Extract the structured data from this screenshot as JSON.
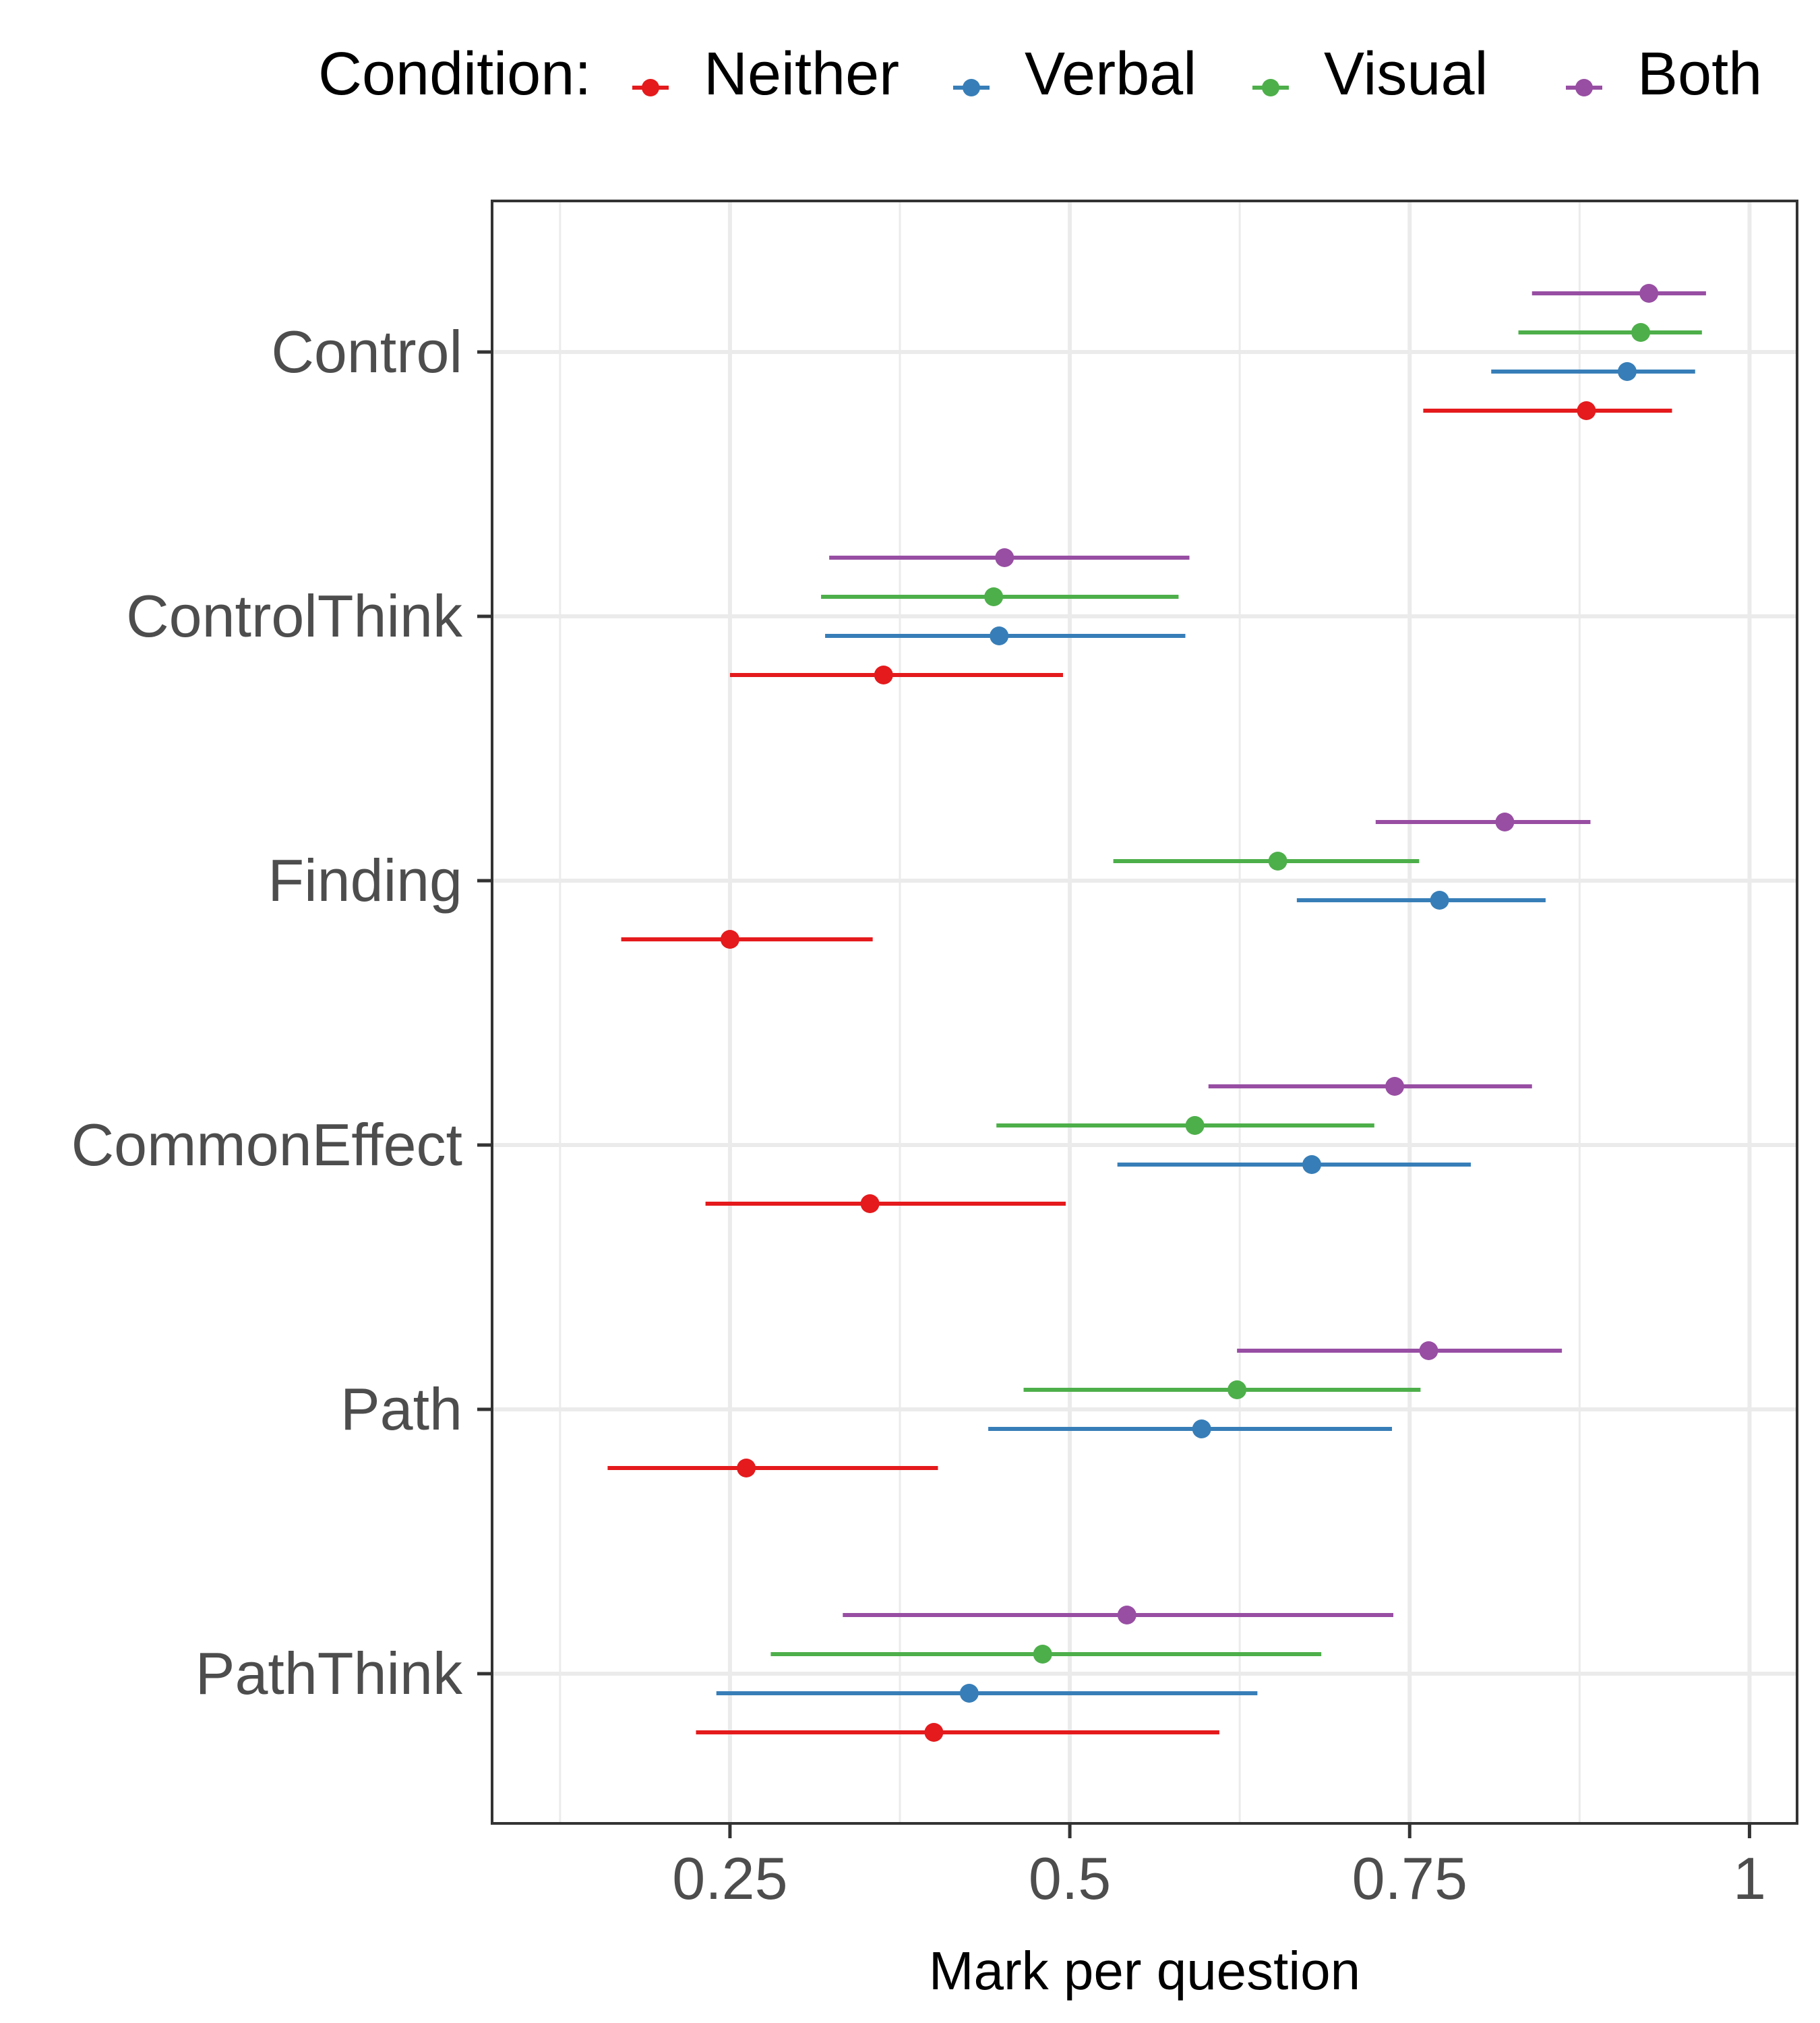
{
  "chart_data": {
    "type": "dot-errorbar",
    "title": "",
    "xlabel": "Mark per question",
    "ylabel": "",
    "xlim": [
      0.075,
      1.035
    ],
    "x_ticks": [
      0.25,
      0.5,
      0.75,
      1.0
    ],
    "x_tick_labels": [
      "0.25",
      "0.5",
      "0.75",
      "1"
    ],
    "minor_gridlines": [
      0.125,
      0.375,
      0.625,
      0.875
    ],
    "grid": true,
    "legend": {
      "position": "top",
      "title": "Condition:",
      "entries": [
        "Neither",
        "Verbal",
        "Visual",
        "Both"
      ]
    },
    "categories": [
      "Control",
      "ControlThink",
      "Finding",
      "CommonEffect",
      "Path",
      "PathThink"
    ],
    "series": [
      {
        "name": "Neither",
        "color": "#E41A1C",
        "points": [
          {
            "category": "Control",
            "estimate": 0.88,
            "lower": 0.76,
            "upper": 0.943
          },
          {
            "category": "ControlThink",
            "estimate": 0.363,
            "lower": 0.25,
            "upper": 0.495
          },
          {
            "category": "Finding",
            "estimate": 0.25,
            "lower": 0.17,
            "upper": 0.355
          },
          {
            "category": "CommonEffect",
            "estimate": 0.353,
            "lower": 0.232,
            "upper": 0.497
          },
          {
            "category": "Path",
            "estimate": 0.262,
            "lower": 0.16,
            "upper": 0.403
          },
          {
            "category": "PathThink",
            "estimate": 0.4,
            "lower": 0.225,
            "upper": 0.61
          }
        ]
      },
      {
        "name": "Verbal",
        "color": "#377EB8",
        "points": [
          {
            "category": "Control",
            "estimate": 0.91,
            "lower": 0.81,
            "upper": 0.96
          },
          {
            "category": "ControlThink",
            "estimate": 0.448,
            "lower": 0.32,
            "upper": 0.585
          },
          {
            "category": "Finding",
            "estimate": 0.772,
            "lower": 0.667,
            "upper": 0.85
          },
          {
            "category": "CommonEffect",
            "estimate": 0.678,
            "lower": 0.535,
            "upper": 0.795
          },
          {
            "category": "Path",
            "estimate": 0.597,
            "lower": 0.44,
            "upper": 0.737
          },
          {
            "category": "PathThink",
            "estimate": 0.426,
            "lower": 0.24,
            "upper": 0.638
          }
        ]
      },
      {
        "name": "Visual",
        "color": "#4DAF4A",
        "points": [
          {
            "category": "Control",
            "estimate": 0.92,
            "lower": 0.83,
            "upper": 0.965
          },
          {
            "category": "ControlThink",
            "estimate": 0.444,
            "lower": 0.317,
            "upper": 0.58
          },
          {
            "category": "Finding",
            "estimate": 0.653,
            "lower": 0.532,
            "upper": 0.757
          },
          {
            "category": "CommonEffect",
            "estimate": 0.592,
            "lower": 0.446,
            "upper": 0.724
          },
          {
            "category": "Path",
            "estimate": 0.623,
            "lower": 0.466,
            "upper": 0.758
          },
          {
            "category": "PathThink",
            "estimate": 0.48,
            "lower": 0.28,
            "upper": 0.685
          }
        ]
      },
      {
        "name": "Both",
        "color": "#984EA3",
        "points": [
          {
            "category": "Control",
            "estimate": 0.926,
            "lower": 0.84,
            "upper": 0.968
          },
          {
            "category": "ControlThink",
            "estimate": 0.452,
            "lower": 0.323,
            "upper": 0.588
          },
          {
            "category": "Finding",
            "estimate": 0.82,
            "lower": 0.725,
            "upper": 0.883
          },
          {
            "category": "CommonEffect",
            "estimate": 0.739,
            "lower": 0.602,
            "upper": 0.84
          },
          {
            "category": "Path",
            "estimate": 0.764,
            "lower": 0.623,
            "upper": 0.862
          },
          {
            "category": "PathThink",
            "estimate": 0.542,
            "lower": 0.333,
            "upper": 0.738
          }
        ]
      }
    ]
  }
}
